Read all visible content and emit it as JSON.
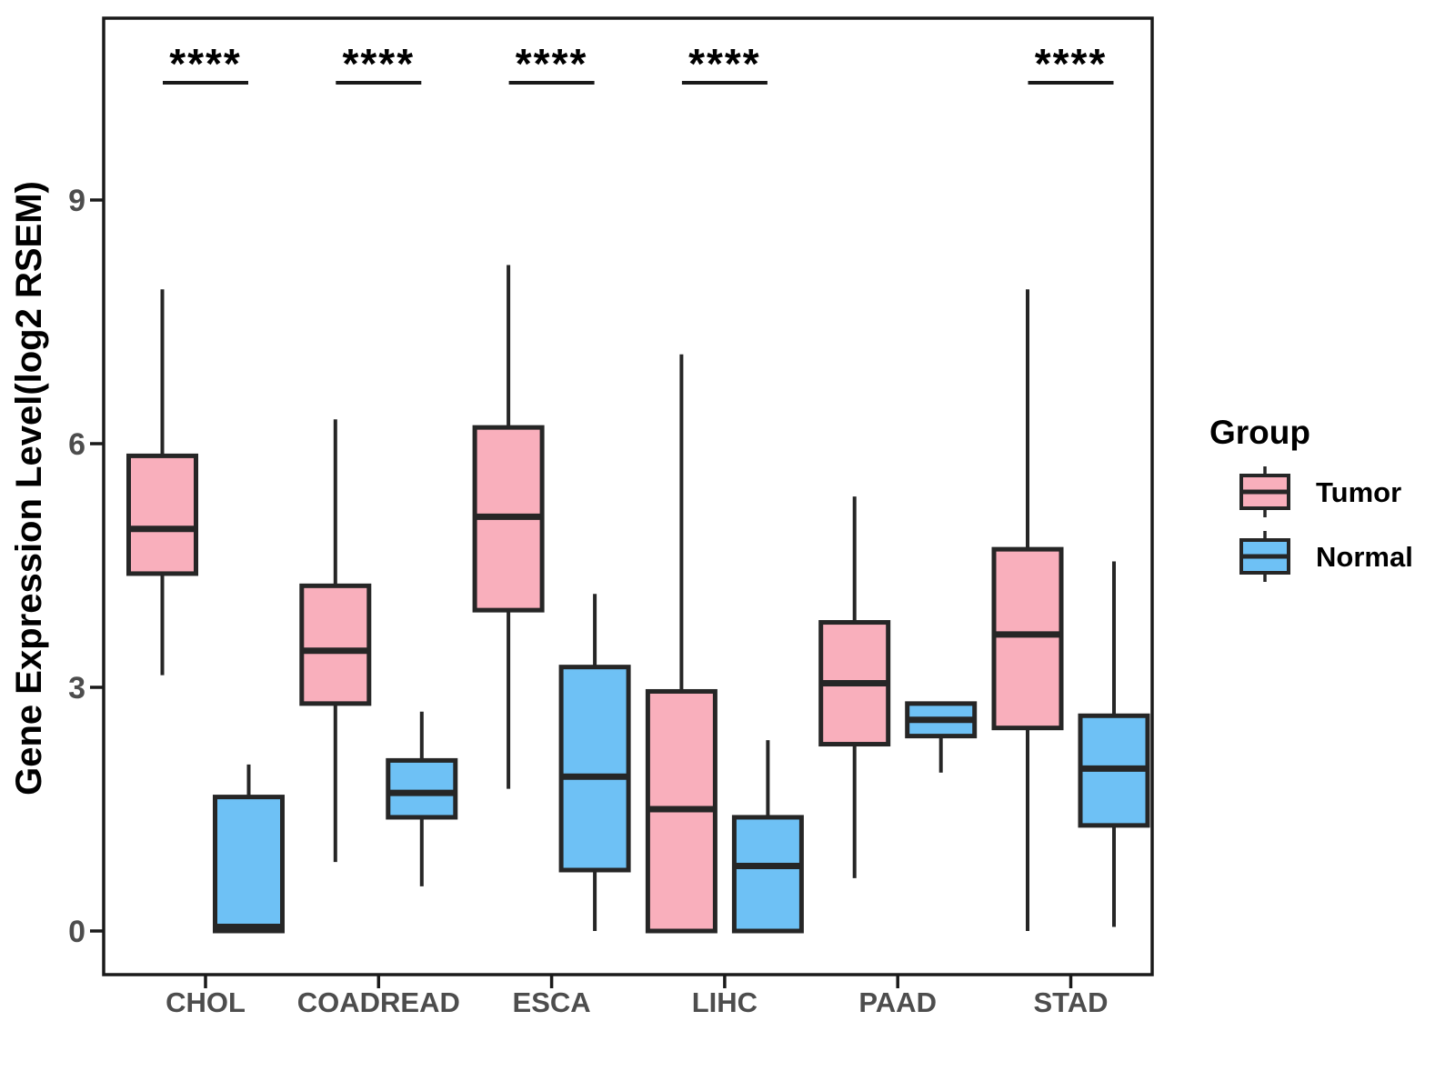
{
  "page": {
    "background": "#ffffff"
  },
  "colors": {
    "tumor_fill": "#F9AFBC",
    "normal_fill": "#6EC1F5",
    "box_outline": "#262626",
    "axis_line": "#1a1a1a",
    "axis_tick_text": "#4d4d4d",
    "category_text": "#4d4d4d",
    "title_text": "#000000"
  },
  "chart_data": {
    "type": "boxplot",
    "title": "",
    "xlabel": "",
    "ylabel": "Gene Expression Level(log2 RSEM)",
    "categories": [
      "CHOL",
      "COADREAD",
      "ESCA",
      "LIHC",
      "PAAD",
      "STAD"
    ],
    "y_axis": {
      "ticks": [
        0,
        3,
        6,
        9
      ],
      "tick_labels": [
        "0",
        "3",
        "6",
        "9"
      ],
      "ylim": [
        -0.55,
        11.25
      ],
      "grid": false
    },
    "legend": {
      "title": "Group",
      "position": "right",
      "items": [
        {
          "label": "Tumor",
          "color": "#F9AFBC"
        },
        {
          "label": "Normal",
          "color": "#6EC1F5"
        }
      ]
    },
    "significance": {
      "symbol": "****",
      "underline": true,
      "categories": [
        "CHOL",
        "COADREAD",
        "ESCA",
        "LIHC",
        "STAD"
      ]
    },
    "series": [
      {
        "name": "Tumor",
        "color": "#F9AFBC",
        "data": [
          {
            "category": "CHOL",
            "min": 3.15,
            "q1": 4.4,
            "median": 4.95,
            "q3": 5.85,
            "max": 7.9
          },
          {
            "category": "COADREAD",
            "min": 0.85,
            "q1": 2.8,
            "median": 3.45,
            "q3": 4.25,
            "max": 6.3
          },
          {
            "category": "ESCA",
            "min": 1.75,
            "q1": 3.95,
            "median": 5.1,
            "q3": 6.2,
            "max": 8.2
          },
          {
            "category": "LIHC",
            "min": 0,
            "q1": 0,
            "median": 1.5,
            "q3": 2.95,
            "max": 7.1
          },
          {
            "category": "PAAD",
            "min": 0.65,
            "q1": 2.3,
            "median": 3.05,
            "q3": 3.8,
            "max": 5.35
          },
          {
            "category": "STAD",
            "min": 0,
            "q1": 2.5,
            "median": 3.65,
            "q3": 4.7,
            "max": 7.9
          }
        ]
      },
      {
        "name": "Normal",
        "color": "#6EC1F5",
        "data": [
          {
            "category": "CHOL",
            "min": 0,
            "q1": 0,
            "median": 0.05,
            "q3": 1.65,
            "max": 2.05
          },
          {
            "category": "COADREAD",
            "min": 0.55,
            "q1": 1.4,
            "median": 1.7,
            "q3": 2.1,
            "max": 2.7
          },
          {
            "category": "ESCA",
            "min": 0,
            "q1": 0.75,
            "median": 1.9,
            "q3": 3.25,
            "max": 4.15
          },
          {
            "category": "LIHC",
            "min": 0,
            "q1": 0,
            "median": 0.8,
            "q3": 1.4,
            "max": 2.35
          },
          {
            "category": "PAAD",
            "min": 1.95,
            "q1": 2.4,
            "median": 2.6,
            "q3": 2.8,
            "max": 2.8
          },
          {
            "category": "STAD",
            "min": 0.05,
            "q1": 1.3,
            "median": 2.0,
            "q3": 2.65,
            "max": 4.55
          }
        ]
      }
    ]
  }
}
